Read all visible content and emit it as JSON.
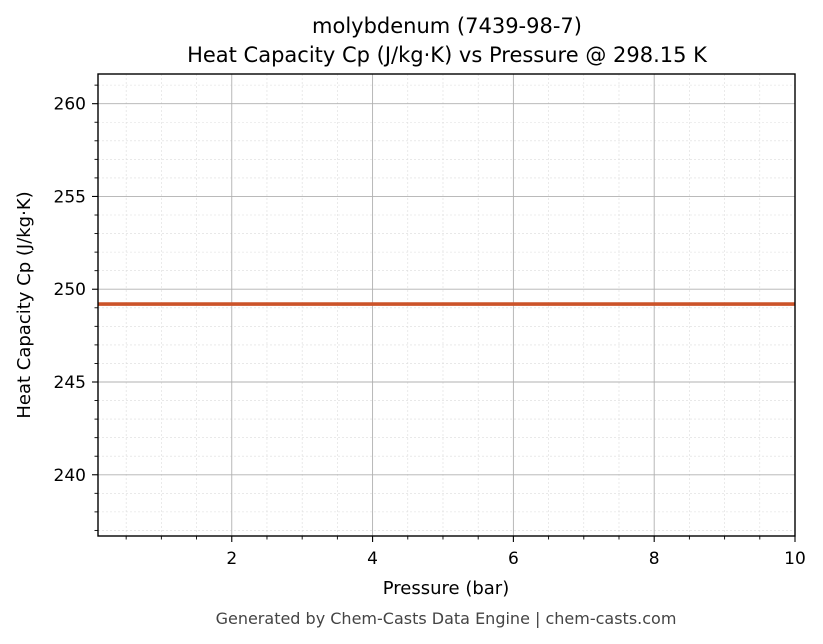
{
  "chart_data": {
    "type": "line",
    "title": "molybdenum (7439-98-7)",
    "subtitle": "Heat Capacity Cp (J/kg·K) vs Pressure @ 298.15 K",
    "xlabel": "Pressure (bar)",
    "ylabel": "Heat Capacity Cp (J/kg·K)",
    "xlim": [
      0.1,
      10
    ],
    "ylim": [
      236.7,
      261.6
    ],
    "x_ticks": [
      2,
      4,
      6,
      8,
      10
    ],
    "x_tick_labels": [
      "2",
      "4",
      "6",
      "8",
      "10"
    ],
    "y_ticks": [
      240,
      245,
      250,
      255,
      260
    ],
    "y_tick_labels": [
      "240",
      "245",
      "250",
      "255",
      "260"
    ],
    "grid": true,
    "minor_grid": true,
    "series": [
      {
        "color": "#cc5329",
        "x": [
          0.1,
          1,
          2,
          3,
          4,
          5,
          6,
          7,
          8,
          9,
          10
        ],
        "y": [
          249.2,
          249.2,
          249.2,
          249.2,
          249.2,
          249.2,
          249.2,
          249.2,
          249.2,
          249.2,
          249.2
        ]
      }
    ]
  },
  "footer": "Generated by Chem-Casts Data Engine | chem-casts.com"
}
